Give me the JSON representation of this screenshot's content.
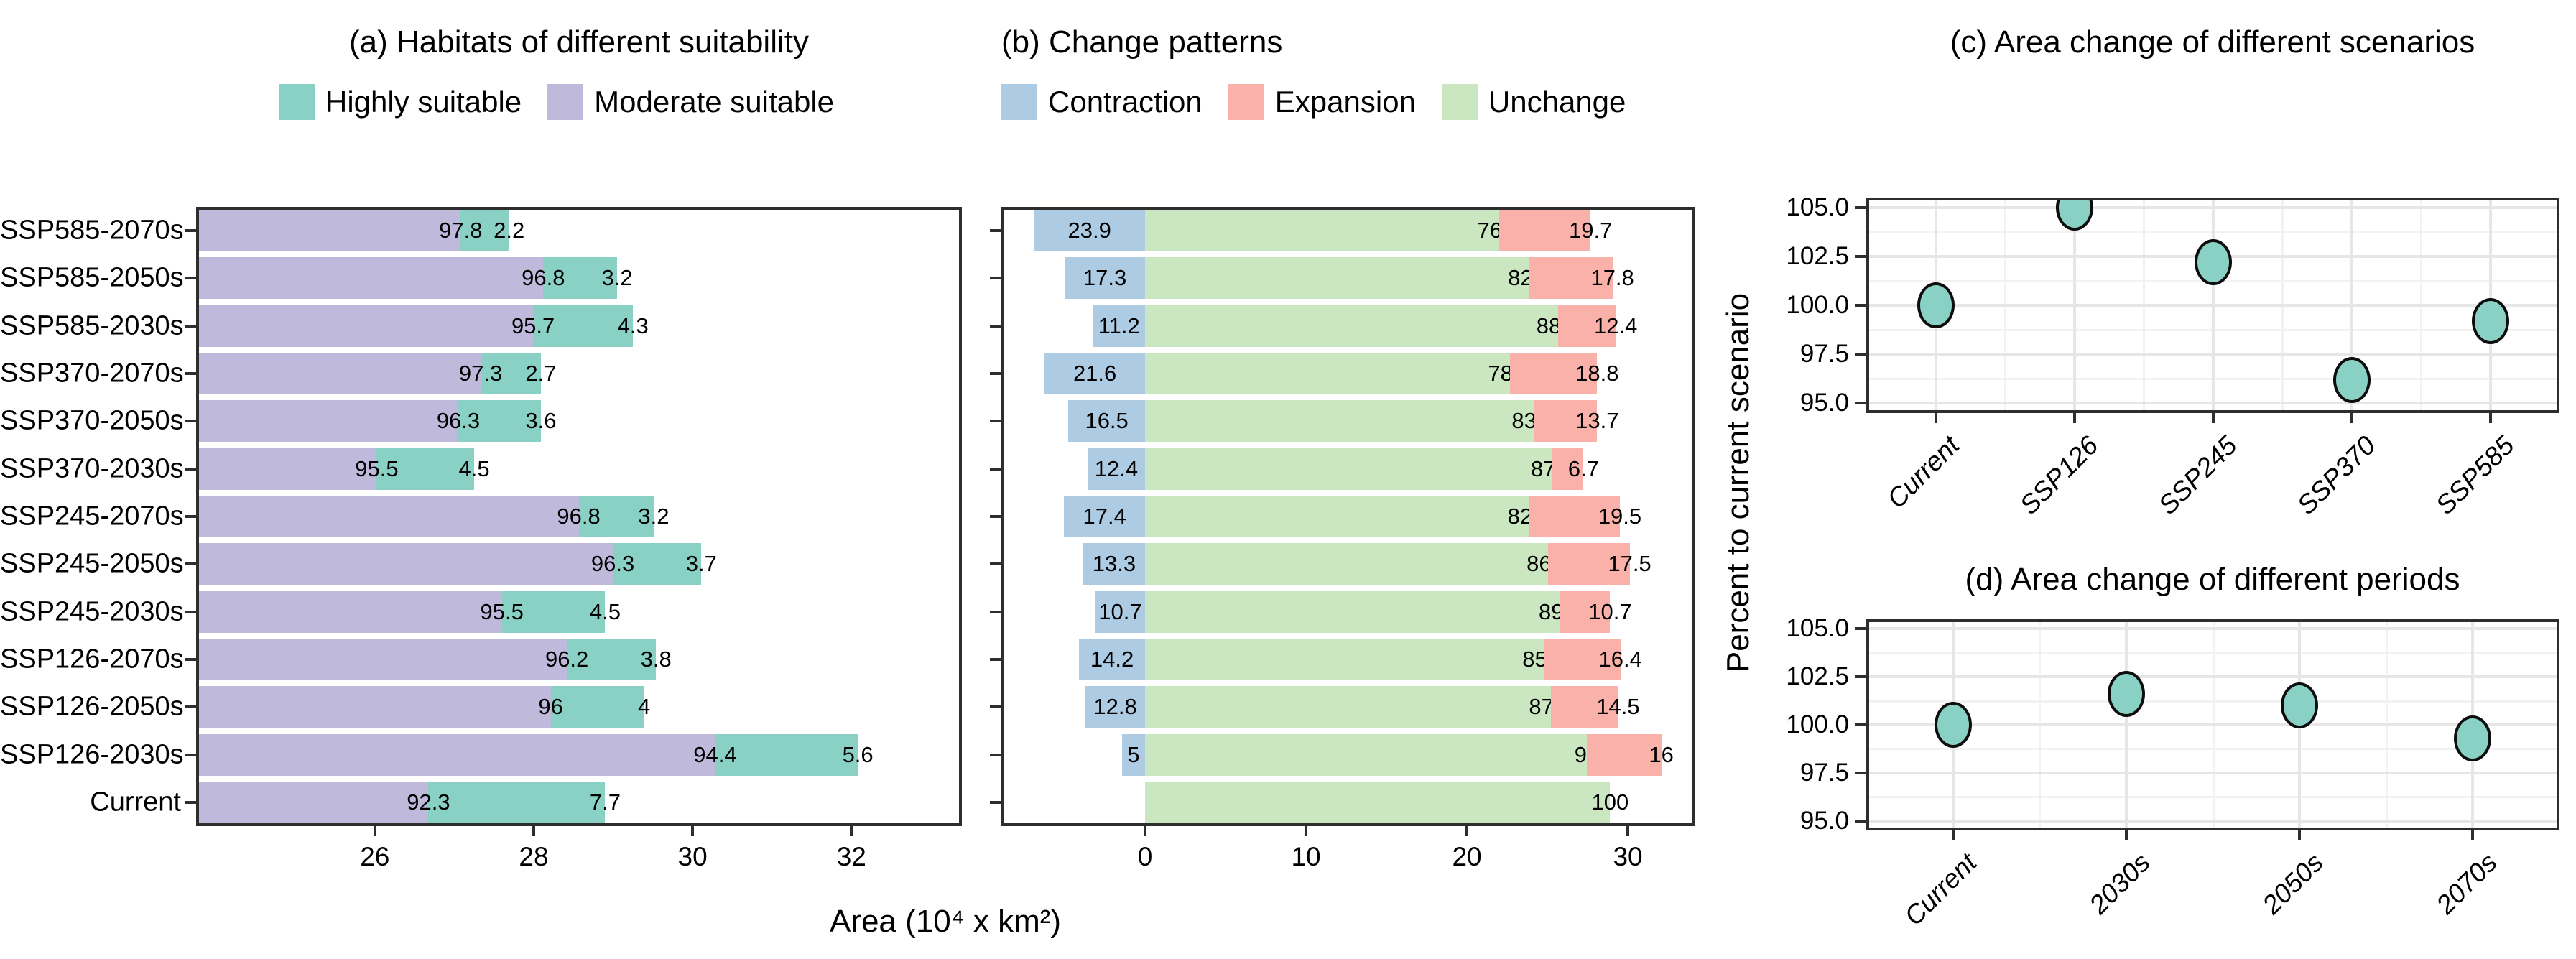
{
  "figure": {
    "x_axis_label": "Area (10⁴ x km²)",
    "y_axis_label": "Percent to current scenario"
  },
  "legends": {
    "panel_a": [
      {
        "label": "Highly suitable",
        "color": "#89D1C4"
      },
      {
        "label": "Moderate suitable",
        "color": "#BFBADB"
      }
    ],
    "panel_b": [
      {
        "label": "Contraction",
        "color": "#ADCBE3"
      },
      {
        "label": "Expansion",
        "color": "#F9B1AA"
      },
      {
        "label": "Unchange",
        "color": "#CBE7C1"
      }
    ]
  },
  "chart_data": [
    {
      "id": "a",
      "type": "bar",
      "title": "(a) Habitats of different suitability",
      "orientation": "horizontal",
      "stacked": true,
      "categories": [
        "SSP585-2070s",
        "SSP585-2050s",
        "SSP585-2030s",
        "SSP370-2070s",
        "SSP370-2050s",
        "SSP370-2030s",
        "SSP245-2070s",
        "SSP245-2050s",
        "SSP245-2030s",
        "SSP126-2070s",
        "SSP126-2050s",
        "SSP126-2030s",
        "Current"
      ],
      "series": [
        {
          "name": "Moderate suitable",
          "color": "#BFBADB",
          "pct": [
            97.8,
            96.8,
            95.7,
            97.3,
            96.3,
            95.5,
            96.8,
            96.3,
            95.5,
            96.2,
            96,
            94.4,
            92.3
          ]
        },
        {
          "name": "Highly suitable",
          "color": "#89D1C4",
          "pct": [
            2.2,
            3.2,
            4.3,
            2.7,
            3.6,
            4.5,
            3.2,
            3.7,
            4.5,
            3.8,
            4,
            5.6,
            7.7
          ]
        }
      ],
      "total_area_1e4km2": [
        27.69,
        29.05,
        29.25,
        28.09,
        28.09,
        27.25,
        29.51,
        30.11,
        28.9,
        29.54,
        29.39,
        32.08,
        28.9
      ],
      "xlabel": "Area (10⁴ x km²)",
      "xticks": [
        26,
        28,
        30,
        32
      ],
      "xlim": [
        23.75,
        33.39
      ],
      "grid": false
    },
    {
      "id": "b",
      "type": "bar",
      "title": "(b) Change patterns",
      "orientation": "horizontal",
      "stacked": true,
      "categories": [
        "SSP585-2070s",
        "SSP585-2050s",
        "SSP585-2030s",
        "SSP370-2070s",
        "SSP370-2050s",
        "SSP370-2030s",
        "SSP245-2070s",
        "SSP245-2050s",
        "SSP245-2030s",
        "SSP126-2070s",
        "SSP126-2050s",
        "SSP126-2030s",
        "Current"
      ],
      "series": [
        {
          "name": "Contraction",
          "color": "#ADCBE3",
          "pct": [
            23.9,
            17.3,
            11.2,
            21.6,
            16.5,
            12.4,
            17.4,
            13.3,
            10.7,
            14.2,
            12.8,
            5,
            0
          ]
        },
        {
          "name": "Unchange",
          "color": "#CBE7C1",
          "pct": [
            76.1,
            82.7,
            88.8,
            78.4,
            83.5,
            87.6,
            82.6,
            86.7,
            89.3,
            85.8,
            87.2,
            95,
            100
          ]
        },
        {
          "name": "Expansion",
          "color": "#F9B1AA",
          "pct": [
            19.7,
            17.8,
            12.4,
            18.8,
            13.7,
            6.7,
            19.5,
            17.5,
            10.7,
            16.4,
            14.5,
            16,
            0
          ]
        }
      ],
      "current_area_1e4km2": 28.9,
      "xticks": [
        0,
        10,
        20,
        30
      ],
      "xlim": [
        -8.93,
        34.15
      ],
      "grid": false
    },
    {
      "id": "c",
      "type": "scatter",
      "title": "(c) Area change of different scenarios",
      "categories": [
        "Current",
        "SSP126",
        "SSP245",
        "SSP370",
        "SSP585"
      ],
      "values": [
        100,
        105,
        102.2,
        96.2,
        99.2
      ],
      "yticks": [
        105,
        102.5,
        100,
        97.5,
        95
      ],
      "ytick_labels": [
        "105.0",
        "102.5",
        "100.0",
        "97.5",
        "95.0"
      ],
      "ylim": [
        94.5,
        105.5
      ],
      "ylabel": "Percent to current scenario",
      "point_color": "#89D1C4",
      "grid": true,
      "legend_position": "none"
    },
    {
      "id": "d",
      "type": "scatter",
      "title": "(d) Area change of different periods",
      "categories": [
        "Current",
        "2030s",
        "2050s",
        "2070s"
      ],
      "values": [
        100,
        101.6,
        101,
        99.3
      ],
      "yticks": [
        105,
        102.5,
        100,
        97.5,
        95
      ],
      "ytick_labels": [
        "105.0",
        "102.5",
        "100.0",
        "97.5",
        "95.0"
      ],
      "ylim": [
        94.5,
        105.5
      ],
      "ylabel": "Percent to current scenario",
      "point_color": "#89D1C4",
      "grid": true,
      "legend_position": "none"
    }
  ]
}
